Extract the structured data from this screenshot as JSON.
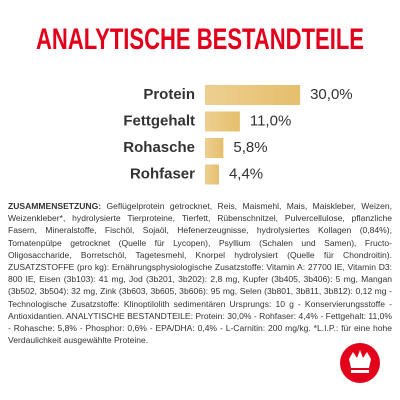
{
  "chart_data": {
    "type": "hbar",
    "title": "ANALYTISCHE BESTANDTEILE",
    "categories": [
      "Protein",
      "Fettgehalt",
      "Rohasche",
      "Rohfaser"
    ],
    "values": [
      30.0,
      11.0,
      5.8,
      4.4
    ],
    "value_labels": [
      "30,0%",
      "11,0%",
      "5,8%",
      "4,4%"
    ],
    "color": "#e6bf6c"
  },
  "composition": {
    "label": "ZUSAMMENSETZUNG:",
    "text": "Geflügelprotein getrocknet, Reis, Maismehl, Mais, Maiskleber, Weizen, Weizenkleber*, hydrolysierte Tierproteine, Tierfett, Rübenschnitzel, Pulvercellulose, pflanzliche Fasern, Mineralstoffe, Fischöl, Sojaöl, Hefenerzeugnisse, hydrolysiertes Kollagen (0,84%), Tomatenpülpe getrocknet (Quelle für Lycopen), Psyllium (Schalen und Samen), Fructo-Oligosaccharide, Borretschöl, Tagetesmehl, Knorpel hydrolysiert (Quelle für Chondroitin). ZUSATZSTOFFE (pro kg): Ernährungsphysiologische Zusatzstoffe: Vitamin A: 27700 IE, Vitamin D3: 800 IE, Eisen (3b103): 41 mg, Jod (3b201, 3b202): 2,8 mg, Kupfer (3b405, 3b406): 5 mg, Mangan (3b502, 3b504): 32 mg, Zink (3b603, 3b605, 3b606): 95 mg, Selen (3b801, 3b811, 3b812): 0,12 mg - Technologische Zusatzstoffe: Klinoptilolith sedimentären Ursprungs: 10 g - Konservierungsstoffe - Antioxidantien. ANALYTISCHE BESTANDTEILE: Protein: 30,0% - Rohfaser: 4,4% - Fettgehalt: 11,0% - Rohasche: 5,8% - Phosphor: 0,6% - EPA/DHA: 0,4% - L-Carnitin: 200 mg/kg. *L.I.P.: für eine hohe Verdaulichkeit ausgewählte Proteine."
  }
}
